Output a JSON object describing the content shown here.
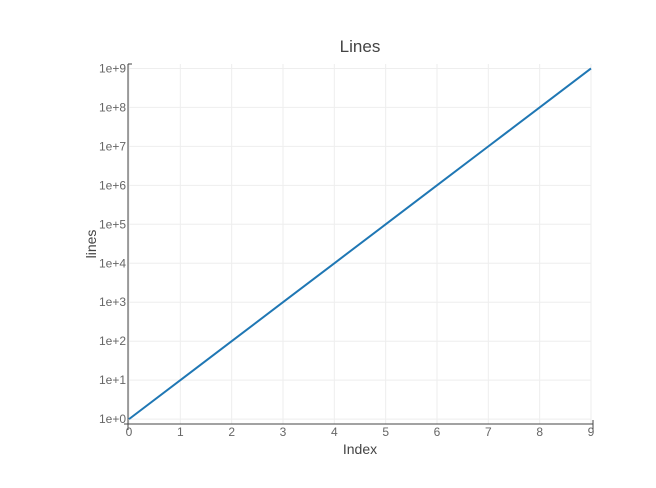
{
  "chart_data": {
    "type": "line",
    "title": "Lines",
    "xlabel": "Index",
    "ylabel": "lines",
    "x": [
      0,
      1,
      2,
      3,
      4,
      5,
      6,
      7,
      8,
      9
    ],
    "series": [
      {
        "values": [
          1,
          10,
          100,
          1000,
          10000,
          100000,
          1000000,
          10000000,
          100000000,
          1000000000
        ],
        "color": "#1f77b4"
      }
    ],
    "xlim": [
      0,
      9
    ],
    "ylim": [
      0.75,
      1300000000
    ],
    "yscale": "log",
    "grid": true,
    "x_ticks": [
      0,
      1,
      2,
      3,
      4,
      5,
      6,
      7,
      8,
      9
    ],
    "x_tick_labels": [
      "0",
      "1",
      "2",
      "3",
      "4",
      "5",
      "6",
      "7",
      "8",
      "9"
    ],
    "y_ticks": [
      1,
      10,
      100,
      1000,
      10000,
      100000,
      1000000,
      10000000,
      100000000,
      1000000000
    ],
    "y_tick_labels": [
      "1e+0",
      "1e+1",
      "1e+2",
      "1e+3",
      "1e+4",
      "1e+5",
      "1e+6",
      "1e+7",
      "1e+8",
      "1e+9"
    ],
    "colors": {
      "grid": "#eeeeee",
      "axis": "#444444",
      "text": "#444444",
      "tick_text": "#666666"
    }
  }
}
